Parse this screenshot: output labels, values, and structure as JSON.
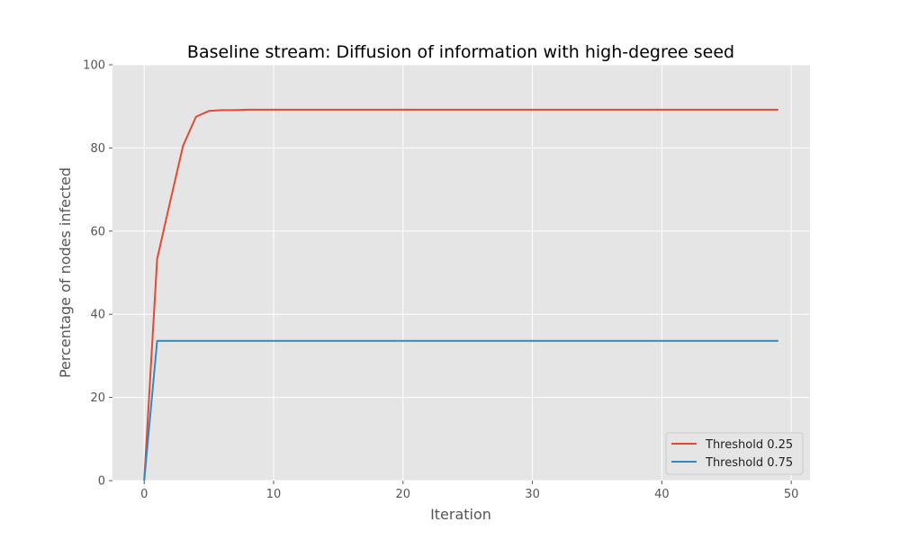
{
  "chart_data": {
    "type": "line",
    "title": "Baseline stream: Diffusion of information with high-degree seed",
    "xlabel": "Iteration",
    "ylabel": "Percentage of nodes infected",
    "xlim": [
      -2.45,
      51.45
    ],
    "ylim": [
      0,
      100
    ],
    "xticks": [
      0,
      10,
      20,
      30,
      40,
      50
    ],
    "yticks": [
      0,
      20,
      40,
      60,
      80,
      100
    ],
    "grid": true,
    "legend_position": "lower-right",
    "x": [
      0,
      1,
      2,
      3,
      4,
      5,
      6,
      7,
      8,
      9,
      10,
      11,
      12,
      13,
      14,
      15,
      16,
      17,
      18,
      19,
      20,
      21,
      22,
      23,
      24,
      25,
      26,
      27,
      28,
      29,
      30,
      31,
      32,
      33,
      34,
      35,
      36,
      37,
      38,
      39,
      40,
      41,
      42,
      43,
      44,
      45,
      46,
      47,
      48,
      49
    ],
    "series": [
      {
        "name": "Threshold 0.25",
        "color": "#E24A33",
        "values": [
          0,
          53.3,
          67,
          80.5,
          87.5,
          88.9,
          89.1,
          89.1,
          89.2,
          89.2,
          89.2,
          89.2,
          89.2,
          89.2,
          89.2,
          89.2,
          89.2,
          89.2,
          89.2,
          89.2,
          89.2,
          89.2,
          89.2,
          89.2,
          89.2,
          89.2,
          89.2,
          89.2,
          89.2,
          89.2,
          89.2,
          89.2,
          89.2,
          89.2,
          89.2,
          89.2,
          89.2,
          89.2,
          89.2,
          89.2,
          89.2,
          89.2,
          89.2,
          89.2,
          89.2,
          89.2,
          89.2,
          89.2,
          89.2,
          89.2
        ]
      },
      {
        "name": "Threshold 0.75",
        "color": "#348ABD",
        "values": [
          0,
          33.6,
          33.6,
          33.6,
          33.6,
          33.6,
          33.6,
          33.6,
          33.6,
          33.6,
          33.6,
          33.6,
          33.6,
          33.6,
          33.6,
          33.6,
          33.6,
          33.6,
          33.6,
          33.6,
          33.6,
          33.6,
          33.6,
          33.6,
          33.6,
          33.6,
          33.6,
          33.6,
          33.6,
          33.6,
          33.6,
          33.6,
          33.6,
          33.6,
          33.6,
          33.6,
          33.6,
          33.6,
          33.6,
          33.6,
          33.6,
          33.6,
          33.6,
          33.6,
          33.6,
          33.6,
          33.6,
          33.6,
          33.6,
          33.6
        ]
      }
    ]
  },
  "style": {
    "plot_background": "#E5E5E5",
    "grid_color": "#FFFFFF"
  }
}
